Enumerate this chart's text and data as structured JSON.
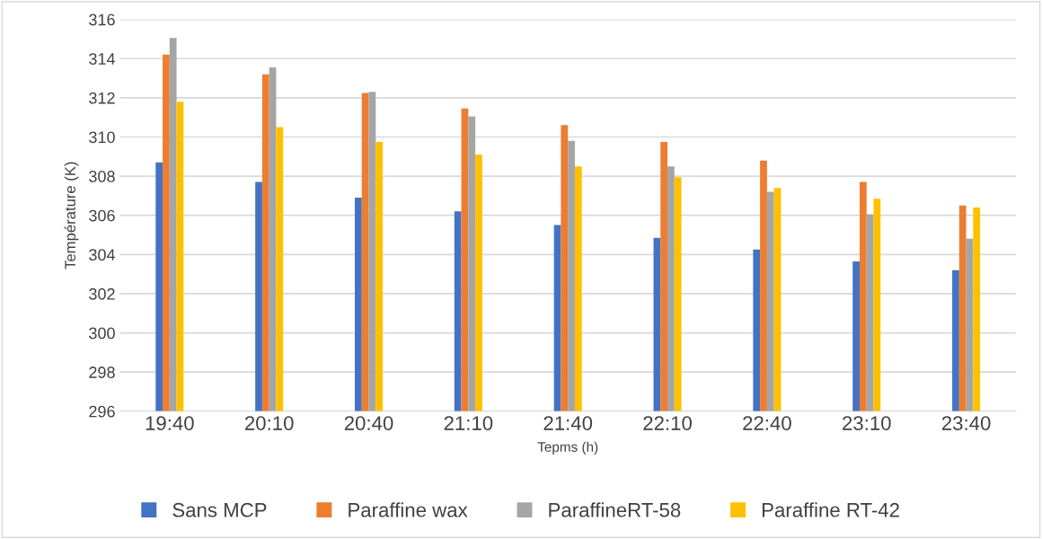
{
  "chart_data": {
    "type": "bar",
    "xlabel": "Tepms (h)",
    "ylabel": "Température (K)",
    "categories": [
      "19:40",
      "20:10",
      "20:40",
      "21:10",
      "21:40",
      "22:10",
      "22:40",
      "23:10",
      "23:40"
    ],
    "series": [
      {
        "name": "Sans MCP",
        "color": "#4472c4",
        "values": [
          308.7,
          307.7,
          306.9,
          306.2,
          305.5,
          304.85,
          304.25,
          303.65,
          303.2
        ]
      },
      {
        "name": "Paraffine wax",
        "color": "#ed7d31",
        "values": [
          314.2,
          313.2,
          312.25,
          311.45,
          310.6,
          309.75,
          308.8,
          307.7,
          306.5
        ]
      },
      {
        "name": "ParaffineRT-58",
        "color": "#a5a5a5",
        "values": [
          315.05,
          313.55,
          312.3,
          311.05,
          309.8,
          308.5,
          307.2,
          306.05,
          304.8
        ]
      },
      {
        "name": "Paraffine RT-42",
        "color": "#ffc000",
        "values": [
          311.8,
          310.5,
          309.75,
          309.1,
          308.5,
          307.95,
          307.4,
          306.85,
          306.4
        ]
      }
    ],
    "ylim": [
      296,
      316
    ],
    "yticks": [
      296,
      298,
      300,
      302,
      304,
      306,
      308,
      310,
      312,
      314,
      316
    ],
    "grid": "y",
    "legend": "bottom"
  }
}
